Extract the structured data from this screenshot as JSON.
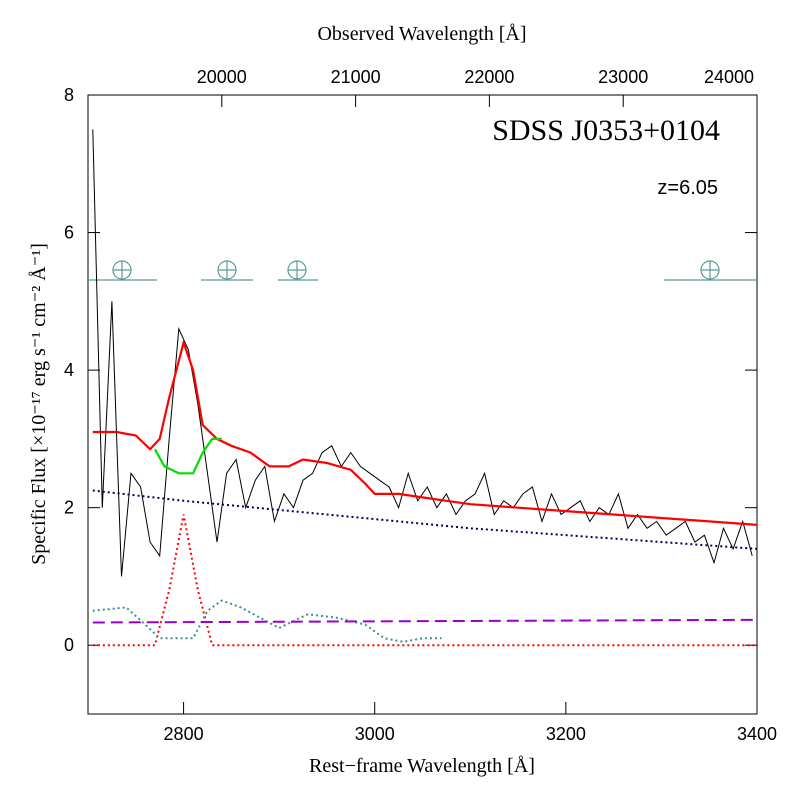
{
  "chart_data": {
    "type": "line",
    "title": "SDSS J0353+0104",
    "annotation": "z=6.05",
    "xlabel": "Rest−frame Wavelength [Å]",
    "x2label": "Observed Wavelength [Å]",
    "ylabel": "Specific Flux [×10⁻¹⁷ erg s⁻¹ cm⁻² Å⁻¹]",
    "xlim": [
      2700,
      3400
    ],
    "xticks": [
      2800,
      3000,
      3200,
      3400
    ],
    "x2lim": [
      19000,
      24000
    ],
    "x2ticks": [
      20000,
      21000,
      22000,
      23000,
      24000
    ],
    "ylim": [
      -1,
      8
    ],
    "yticks": [
      0,
      2,
      4,
      6,
      8
    ],
    "series": [
      {
        "color": "#000000",
        "style": "solid",
        "width": 1,
        "x": [
          2705,
          2715,
          2725,
          2735,
          2745,
          2755,
          2765,
          2775,
          2785,
          2795,
          2805,
          2815,
          2825,
          2835,
          2845,
          2855,
          2865,
          2875,
          2885,
          2895,
          2905,
          2915,
          2925,
          2935,
          2945,
          2955,
          2965,
          2975,
          2985,
          2995,
          3005,
          3015,
          3025,
          3035,
          3045,
          3055,
          3065,
          3075,
          3085,
          3095,
          3105,
          3115,
          3125,
          3135,
          3145,
          3155,
          3165,
          3175,
          3185,
          3195,
          3205,
          3215,
          3225,
          3235,
          3245,
          3255,
          3265,
          3275,
          3285,
          3295,
          3305,
          3315,
          3325,
          3335,
          3345,
          3355,
          3365,
          3375,
          3385,
          3395
        ],
        "values": [
          7.5,
          2.0,
          5.0,
          1.0,
          2.5,
          2.3,
          1.5,
          1.3,
          3.0,
          4.6,
          4.3,
          3.5,
          2.5,
          1.5,
          2.5,
          2.7,
          2.0,
          2.4,
          2.6,
          1.8,
          2.2,
          2.0,
          2.4,
          2.5,
          2.8,
          2.9,
          2.6,
          2.8,
          2.6,
          2.5,
          2.4,
          2.3,
          2.0,
          2.5,
          2.1,
          2.3,
          2.0,
          2.2,
          1.9,
          2.1,
          2.2,
          2.5,
          1.9,
          2.1,
          2.0,
          2.2,
          2.3,
          1.8,
          2.2,
          1.9,
          2.0,
          2.1,
          1.8,
          2.0,
          1.9,
          2.2,
          1.7,
          1.9,
          1.7,
          1.8,
          1.6,
          1.7,
          1.8,
          1.5,
          1.6,
          1.2,
          1.7,
          1.4,
          1.8,
          1.3
        ]
      },
      {
        "color": "#ff0000",
        "style": "solid",
        "width": 2.2,
        "x": [
          2705,
          2730,
          2750,
          2765,
          2775,
          2785,
          2800,
          2810,
          2820,
          2835,
          2850,
          2870,
          2890,
          2910,
          2925,
          2950,
          2975,
          2990,
          3000,
          3025,
          3050,
          3075,
          3100,
          3150,
          3200,
          3250,
          3300,
          3350,
          3400
        ],
        "values": [
          3.1,
          3.1,
          3.05,
          2.85,
          3.0,
          3.6,
          4.4,
          4.0,
          3.2,
          3.0,
          2.9,
          2.8,
          2.6,
          2.6,
          2.7,
          2.65,
          2.55,
          2.35,
          2.2,
          2.2,
          2.15,
          2.1,
          2.05,
          2.0,
          1.95,
          1.9,
          1.85,
          1.8,
          1.75
        ]
      },
      {
        "color": "#00e000",
        "style": "solid",
        "width": 2.2,
        "x": [
          2770,
          2780,
          2795,
          2810,
          2820,
          2830,
          2840
        ],
        "values": [
          2.85,
          2.6,
          2.5,
          2.5,
          2.8,
          3.0,
          3.0
        ]
      },
      {
        "color": "#000060",
        "style": "dotted",
        "width": 2,
        "x": [
          2705,
          2800,
          2950,
          3100,
          3250,
          3400
        ],
        "values": [
          2.25,
          2.1,
          1.9,
          1.7,
          1.55,
          1.4
        ]
      },
      {
        "color": "#ff0000",
        "style": "dotted",
        "width": 2,
        "x": [
          2705,
          2770,
          2785,
          2800,
          2815,
          2830,
          3400
        ],
        "values": [
          0,
          0,
          0.8,
          1.9,
          0.8,
          0,
          0
        ]
      },
      {
        "color": "#3a9090",
        "style": "dotted",
        "width": 2,
        "x": [
          2705,
          2740,
          2760,
          2775,
          2810,
          2825,
          2840,
          2860,
          2880,
          2900,
          2915,
          2930,
          2960,
          2990,
          3010,
          3030,
          3050,
          3070
        ],
        "values": [
          0.5,
          0.55,
          0.3,
          0.1,
          0.1,
          0.5,
          0.65,
          0.55,
          0.4,
          0.25,
          0.35,
          0.45,
          0.4,
          0.3,
          0.1,
          0.05,
          0.1,
          0.1
        ]
      },
      {
        "color": "#9900cc",
        "style": "dashed",
        "width": 2,
        "x": [
          2705,
          3400
        ],
        "values": [
          0.33,
          0.37
        ]
      }
    ]
  }
}
